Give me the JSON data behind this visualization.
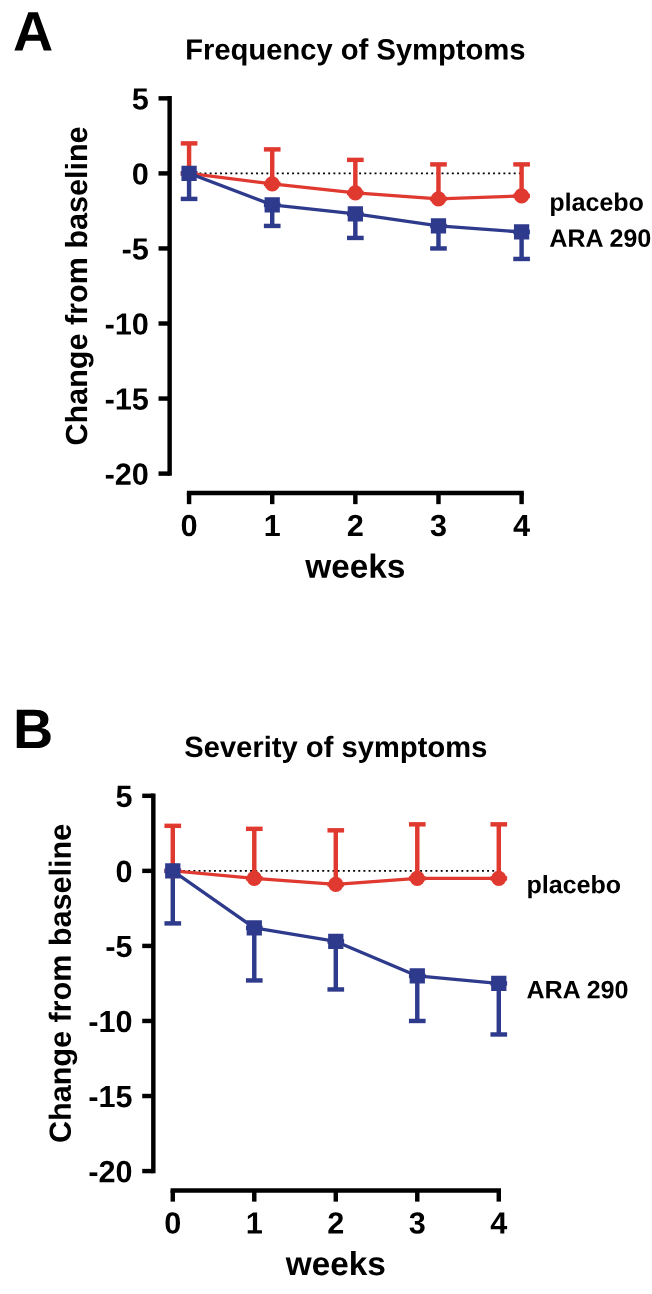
{
  "chart_data": [
    {
      "type": "line",
      "title": "Frequency of Symptoms",
      "xlabel": "weeks",
      "ylabel": "Change from baseline",
      "annotations": [
        "A"
      ],
      "x": [
        0,
        1,
        2,
        3,
        4
      ],
      "xlim": [
        0,
        4
      ],
      "xticks": [
        0,
        1,
        2,
        3,
        4
      ],
      "ylim": [
        -20,
        5
      ],
      "yticks": [
        -20,
        -15,
        -10,
        -5,
        0,
        5
      ],
      "grid": false,
      "legend": false,
      "ref_lines": [
        {
          "axis": "y",
          "value": 0,
          "color": "#000000",
          "line_style": "dotted"
        }
      ],
      "series": [
        {
          "name": "placebo",
          "color": "#e0392f",
          "marker": "circle",
          "values": [
            0,
            -0.7,
            -1.3,
            -1.7,
            -1.5
          ],
          "errors": [
            [
              0,
              2.0
            ],
            [
              -0.7,
              1.6
            ],
            [
              -1.3,
              0.9
            ],
            [
              -1.7,
              0.6
            ],
            [
              -1.5,
              0.6
            ]
          ]
        },
        {
          "name": "ARA 290",
          "color": "#2e3a8c",
          "marker": "square",
          "values": [
            0,
            -2.1,
            -2.7,
            -3.5,
            -3.9
          ],
          "errors": [
            [
              -1.7,
              0
            ],
            [
              -3.5,
              -2.1
            ],
            [
              -4.3,
              -2.7
            ],
            [
              -5.0,
              -3.5
            ],
            [
              -5.7,
              -3.9
            ]
          ]
        }
      ]
    },
    {
      "type": "line",
      "title": "Severity of symptoms",
      "xlabel": "weeks",
      "ylabel": "Change from baseline",
      "annotations": [
        "B"
      ],
      "x": [
        0,
        1,
        2,
        3,
        4
      ],
      "xlim": [
        0,
        4
      ],
      "xticks": [
        0,
        1,
        2,
        3,
        4
      ],
      "ylim": [
        -20,
        5
      ],
      "yticks": [
        -20,
        -15,
        -10,
        -5,
        0,
        5
      ],
      "grid": false,
      "legend": false,
      "ref_lines": [
        {
          "axis": "y",
          "value": 0,
          "color": "#000000",
          "line_style": "dotted"
        }
      ],
      "series": [
        {
          "name": "placebo",
          "color": "#e0392f",
          "marker": "circle",
          "values": [
            0,
            -0.5,
            -0.9,
            -0.5,
            -0.5
          ],
          "errors": [
            [
              0,
              3.0
            ],
            [
              -0.5,
              2.8
            ],
            [
              -0.9,
              2.7
            ],
            [
              -0.5,
              3.1
            ],
            [
              -0.5,
              3.1
            ]
          ]
        },
        {
          "name": "ARA 290",
          "color": "#2e3a8c",
          "marker": "square",
          "values": [
            0,
            -3.8,
            -4.7,
            -7.0,
            -7.5
          ],
          "errors": [
            [
              -3.5,
              0
            ],
            [
              -7.3,
              -3.8
            ],
            [
              -7.9,
              -4.7
            ],
            [
              -10.0,
              -7.0
            ],
            [
              -10.9,
              -7.5
            ]
          ]
        }
      ]
    }
  ]
}
